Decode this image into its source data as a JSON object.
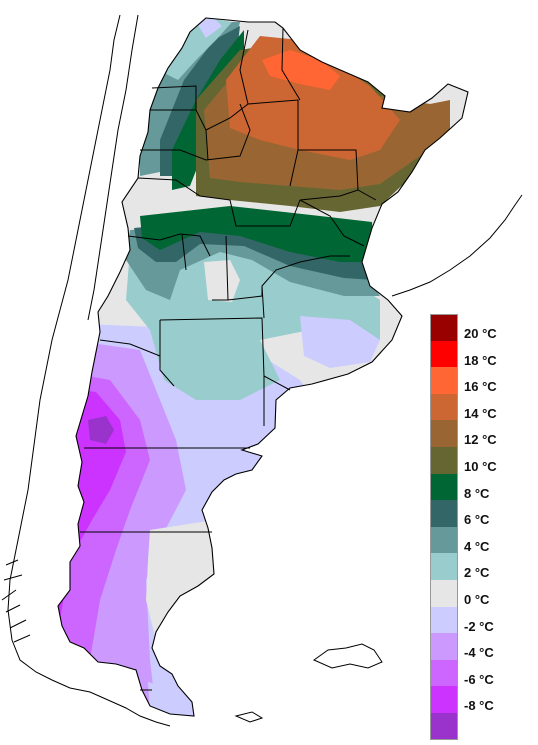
{
  "legend": {
    "entries": [
      {
        "label": "20 °C",
        "color": "#990000"
      },
      {
        "label": "18 °C",
        "color": "#ff0000"
      },
      {
        "label": "16 °C",
        "color": "#ff6633"
      },
      {
        "label": "14 °C",
        "color": "#cc6633"
      },
      {
        "label": "12 °C",
        "color": "#996633"
      },
      {
        "label": "10 °C",
        "color": "#666633"
      },
      {
        "label": "8 °C",
        "color": "#006633"
      },
      {
        "label": "6 °C",
        "color": "#336666"
      },
      {
        "label": "4 °C",
        "color": "#669999"
      },
      {
        "label": "2 °C",
        "color": "#99cccc"
      },
      {
        "label": "0 °C",
        "color": "#e6e6e6"
      },
      {
        "label": "-2 °C",
        "color": "#ccccff"
      },
      {
        "label": "-4 °C",
        "color": "#cc99ff"
      },
      {
        "label": "-6 °C",
        "color": "#cc66ff"
      },
      {
        "label": "-8 °C",
        "color": "#cc33ff"
      }
    ],
    "bottom_color": "#9933cc"
  },
  "map": {
    "region_colors": {
      "below_minus8": "#9933cc",
      "minus8": "#cc33ff",
      "minus6": "#cc66ff",
      "minus4": "#cc99ff",
      "minus2": "#ccccff",
      "zero": "#e6e6e6",
      "two": "#99cccc",
      "four": "#669999",
      "six": "#336666",
      "eight": "#006633",
      "ten": "#666633",
      "twelve": "#996633",
      "fourteen": "#cc6633",
      "sixteen": "#ff6633"
    }
  }
}
